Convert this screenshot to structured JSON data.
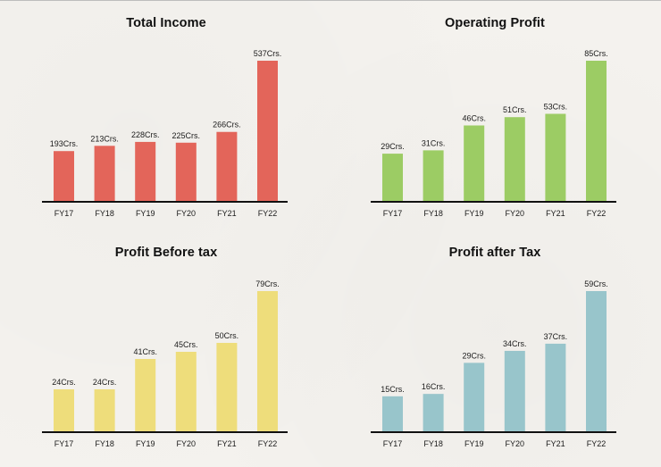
{
  "chart_data": [
    {
      "type": "bar",
      "title": "Total Income",
      "categories": [
        "FY17",
        "FY18",
        "FY19",
        "FY20",
        "FY21",
        "FY22"
      ],
      "values": [
        193,
        213,
        228,
        225,
        266,
        537
      ],
      "value_labels": [
        "193Crs.",
        "213Crs.",
        "228Crs.",
        "225Crs.",
        "266Crs.",
        "537Crs."
      ],
      "color": "#e3655a",
      "ylim": [
        0,
        537
      ],
      "grid": false
    },
    {
      "type": "bar",
      "title": "Operating Profit",
      "categories": [
        "FY17",
        "FY18",
        "FY19",
        "FY20",
        "FY21",
        "FY22"
      ],
      "values": [
        29,
        31,
        46,
        51,
        53,
        85
      ],
      "value_labels": [
        "29Crs.",
        "31Crs.",
        "46Crs.",
        "51Crs.",
        "53Crs.",
        "85Crs."
      ],
      "color": "#9ccc64",
      "ylim": [
        0,
        85
      ],
      "grid": false
    },
    {
      "type": "bar",
      "title": "Profit Before tax",
      "categories": [
        "FY17",
        "FY18",
        "FY19",
        "FY20",
        "FY21",
        "FY22"
      ],
      "values": [
        24,
        24,
        41,
        45,
        50,
        79
      ],
      "value_labels": [
        "24Crs.",
        "24Crs.",
        "41Crs.",
        "45Crs.",
        "50Crs.",
        "79Crs."
      ],
      "color": "#eedd7b",
      "ylim": [
        0,
        79
      ],
      "grid": false
    },
    {
      "type": "bar",
      "title": "Profit after Tax",
      "categories": [
        "FY17",
        "FY18",
        "FY19",
        "FY20",
        "FY21",
        "FY22"
      ],
      "values": [
        15,
        16,
        29,
        34,
        37,
        59
      ],
      "value_labels": [
        "15Crs.",
        "16Crs.",
        "29Crs.",
        "34Crs.",
        "37Crs.",
        "59Crs."
      ],
      "color": "#98c5cb",
      "ylim": [
        0,
        59
      ],
      "grid": false
    }
  ]
}
